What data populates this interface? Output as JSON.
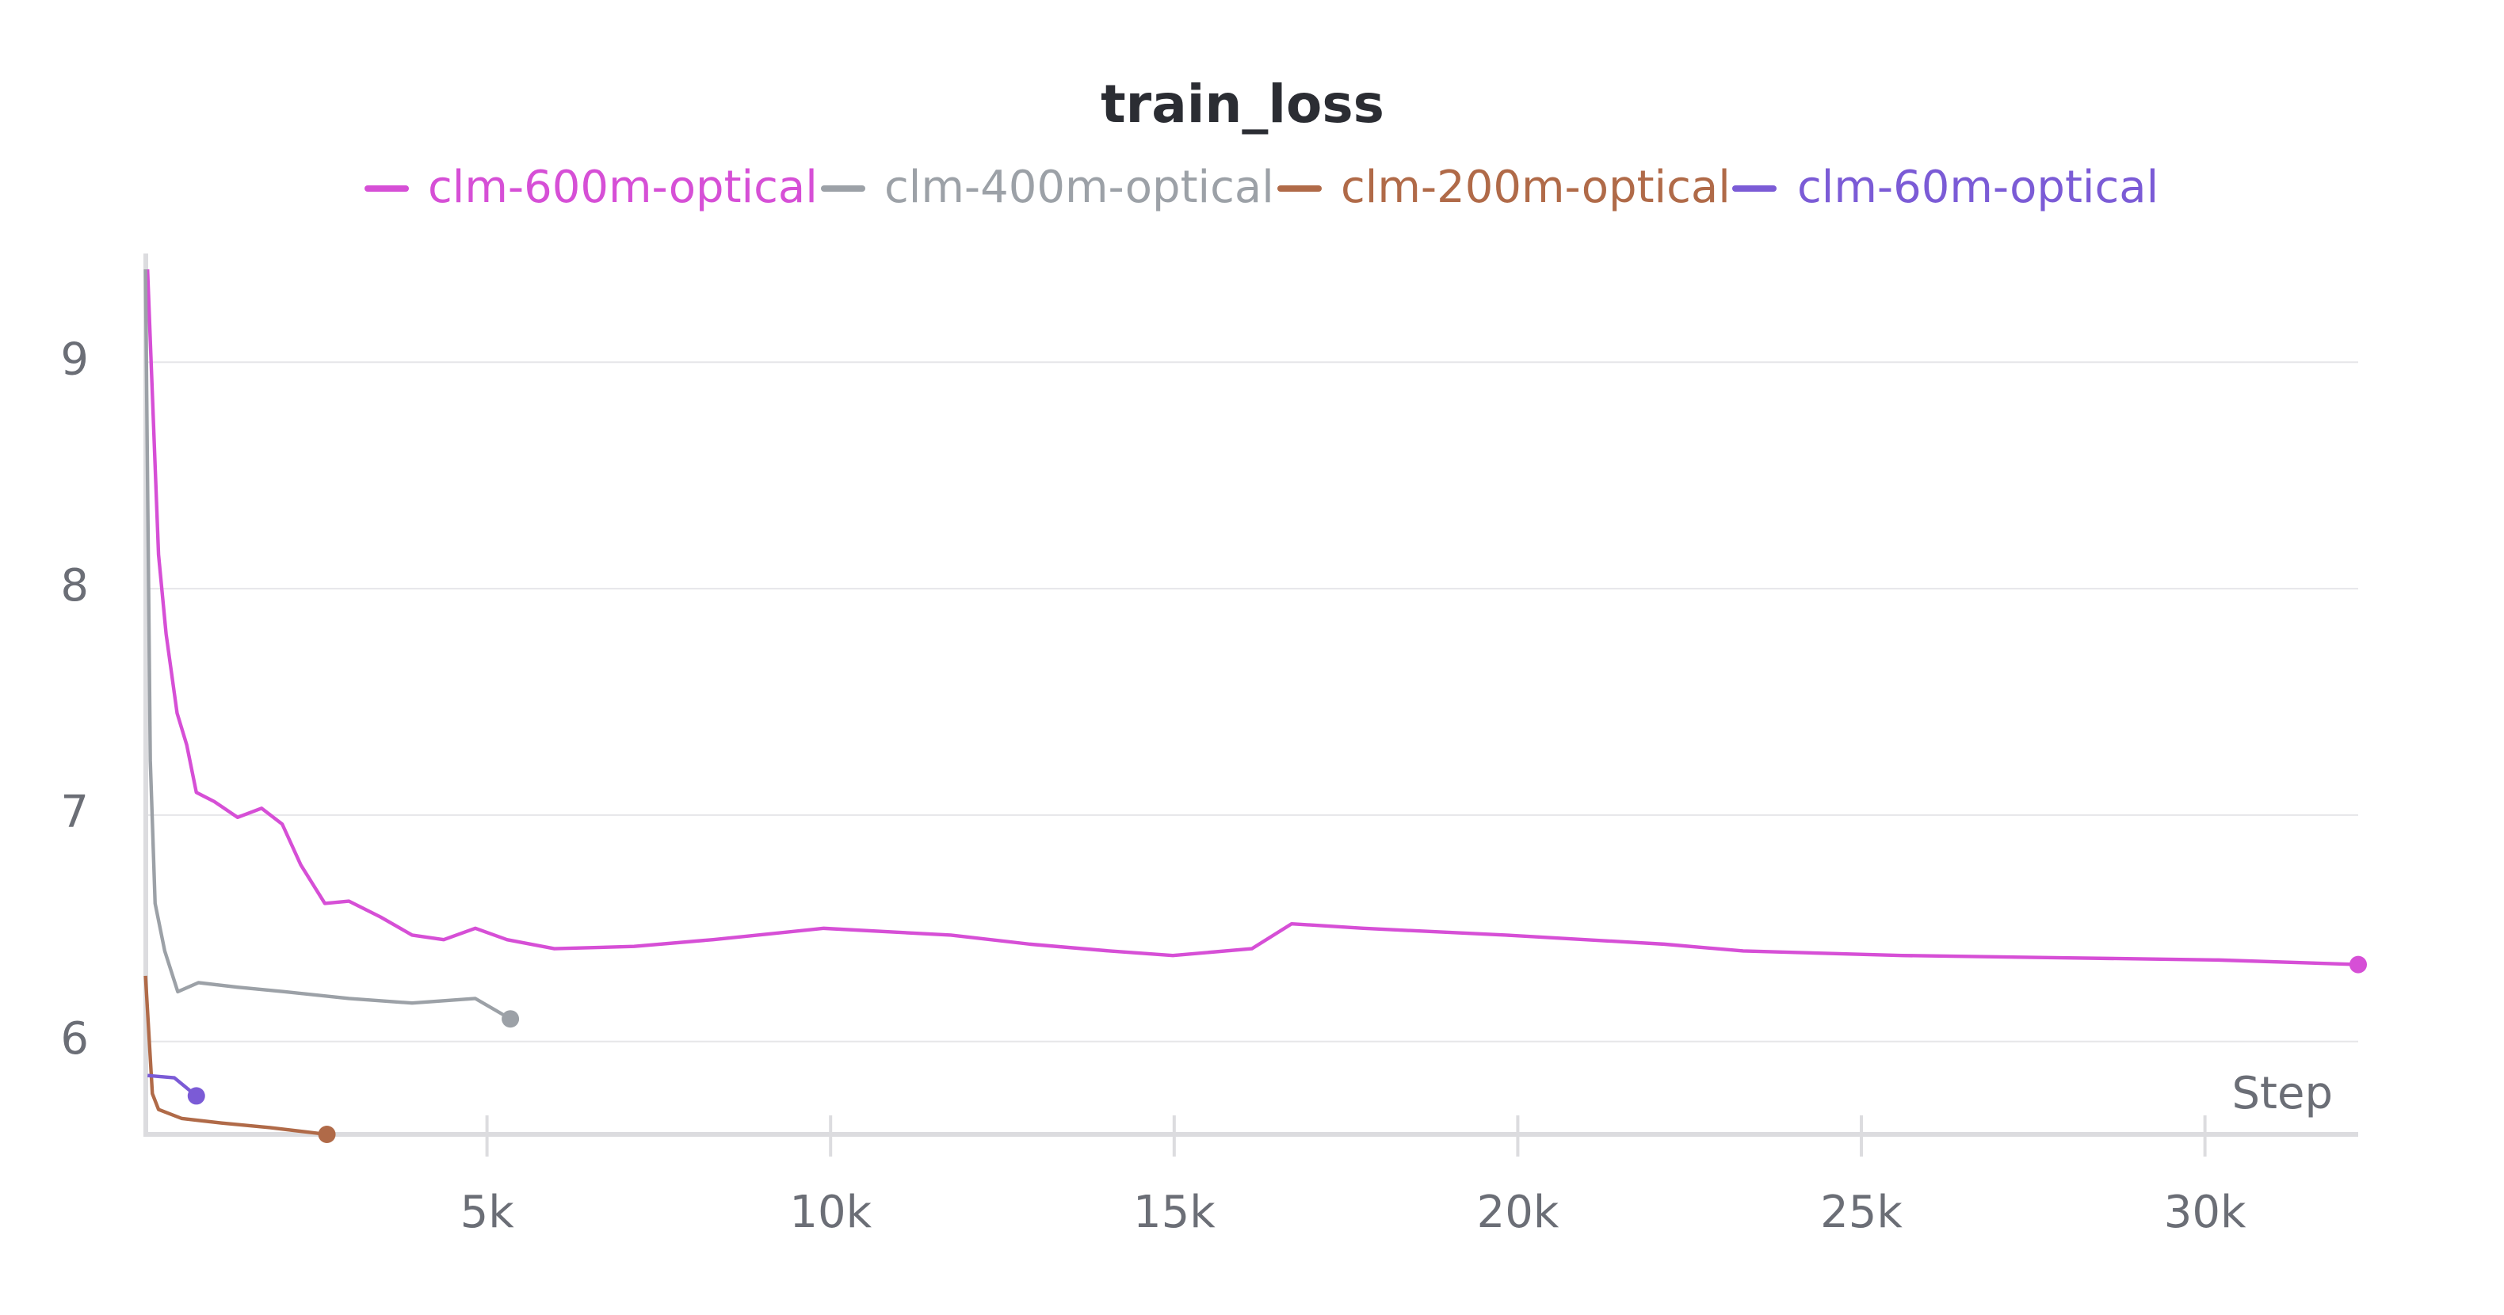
{
  "chart_data": {
    "type": "line",
    "title": "train_loss",
    "x_label": "Step",
    "xlim": [
      0,
      32230
    ],
    "ylim": [
      5.59,
      9.48
    ],
    "xticks": [
      {
        "value": 5000,
        "label": "5k"
      },
      {
        "value": 10000,
        "label": "10k"
      },
      {
        "value": 15000,
        "label": "15k"
      },
      {
        "value": 20000,
        "label": "20k"
      },
      {
        "value": 25000,
        "label": "25k"
      },
      {
        "value": 30000,
        "label": "30k"
      }
    ],
    "yticks": [
      6,
      7,
      8,
      9
    ],
    "grid": true,
    "series": [
      {
        "name": "clm-600m-optical",
        "color": "#d64fd6",
        "x": [
          60,
          220,
          330,
          490,
          630,
          770,
          1030,
          1370,
          1720,
          2020,
          2290,
          2640,
          2990,
          3450,
          3910,
          4370,
          4830,
          5290,
          5980,
          7140,
          8290,
          9900,
          11750,
          12900,
          14060,
          14980,
          16130,
          16710,
          17750,
          19830,
          22130,
          23280,
          25590,
          27900,
          30200,
          32230
        ],
        "values": [
          9.41,
          8.15,
          7.8,
          7.45,
          7.31,
          7.1,
          7.06,
          6.99,
          7.03,
          6.96,
          6.78,
          6.61,
          6.62,
          6.55,
          6.47,
          6.45,
          6.5,
          6.45,
          6.41,
          6.42,
          6.45,
          6.5,
          6.47,
          6.43,
          6.4,
          6.38,
          6.41,
          6.52,
          6.5,
          6.47,
          6.43,
          6.4,
          6.38,
          6.37,
          6.36,
          6.34
        ]
      },
      {
        "name": "clm-400m-optical",
        "color": "#9ca1a7",
        "x": [
          30,
          100,
          170,
          310,
          500,
          800,
          1370,
          2060,
          2990,
          3910,
          4830,
          5340
        ],
        "values": [
          9.41,
          7.24,
          6.61,
          6.4,
          6.22,
          6.26,
          6.24,
          6.22,
          6.19,
          6.17,
          6.19,
          6.1
        ]
      },
      {
        "name": "clm-200m-optical",
        "color": "#b06a48",
        "x": [
          30,
          130,
          220,
          560,
          1140,
          1840,
          2670
        ],
        "values": [
          6.29,
          5.77,
          5.7,
          5.66,
          5.64,
          5.62,
          5.59
        ]
      },
      {
        "name": "clm-60m-optical",
        "color": "#7b5bd6",
        "x": [
          60,
          450,
          770
        ],
        "values": [
          5.85,
          5.84,
          5.76
        ]
      }
    ]
  }
}
